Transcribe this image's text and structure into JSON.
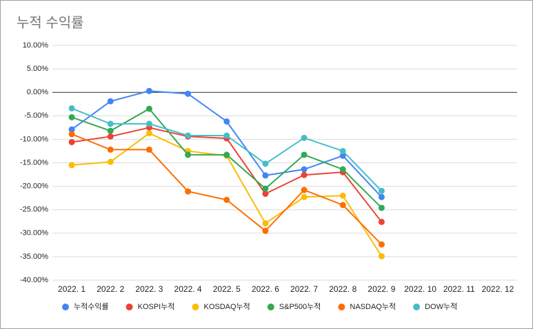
{
  "chart_data": {
    "type": "line",
    "title": "누적 수익률",
    "categories": [
      "2022. 1",
      "2022. 2",
      "2022. 3",
      "2022. 4",
      "2022. 5",
      "2022. 6",
      "2022. 7",
      "2022. 8",
      "2022. 9",
      "2022. 10",
      "2022. 11",
      "2022. 12"
    ],
    "series": [
      {
        "name": "누적수익률",
        "color": "#4285f4",
        "values": [
          -7.9,
          -1.9,
          0.3,
          -0.3,
          -6.2,
          -17.7,
          -16.4,
          -13.5,
          -22.3,
          null,
          null,
          null
        ]
      },
      {
        "name": "KOSPI누적",
        "color": "#ea4335",
        "values": [
          -10.6,
          -9.4,
          -7.5,
          -9.4,
          -9.8,
          -21.6,
          -17.6,
          -17.0,
          -27.6,
          null,
          null,
          null
        ]
      },
      {
        "name": "KOSDAQ누적",
        "color": "#fbbc04",
        "values": [
          -15.5,
          -14.8,
          -8.7,
          -12.5,
          -13.5,
          -27.9,
          -22.3,
          -22.0,
          -34.9,
          null,
          null,
          null
        ]
      },
      {
        "name": "S&P500누적",
        "color": "#34a853",
        "values": [
          -5.3,
          -8.2,
          -3.5,
          -13.3,
          -13.3,
          -20.5,
          -13.3,
          -16.4,
          -24.6,
          null,
          null,
          null
        ]
      },
      {
        "name": "NASDAQ누적",
        "color": "#ff6d01",
        "values": [
          -8.9,
          -12.2,
          -12.2,
          -21.1,
          -22.9,
          -29.5,
          -20.8,
          -24.0,
          -32.4,
          null,
          null,
          null
        ]
      },
      {
        "name": "DOW누적",
        "color": "#46bdc6",
        "values": [
          -3.4,
          -6.7,
          -6.7,
          -9.2,
          -9.2,
          -15.2,
          -9.7,
          -12.5,
          -21.0,
          null,
          null,
          null
        ]
      }
    ],
    "ylim": [
      -40,
      10
    ],
    "yticks": [
      {
        "value": -40,
        "label": "-40.00%"
      },
      {
        "value": -35,
        "label": "-35.00%"
      },
      {
        "value": -30,
        "label": "-30.00%"
      },
      {
        "value": -25,
        "label": "-25.00%"
      },
      {
        "value": -20,
        "label": "-20.00%"
      },
      {
        "value": -15,
        "label": "-15.00%"
      },
      {
        "value": -10,
        "label": "-10.00%"
      },
      {
        "value": -5,
        "label": "-5.00%"
      },
      {
        "value": 0,
        "label": "0.00%"
      },
      {
        "value": 5,
        "label": "5.00%"
      },
      {
        "value": 10,
        "label": "10.00%"
      }
    ],
    "grid": true,
    "legend": "bottom"
  }
}
